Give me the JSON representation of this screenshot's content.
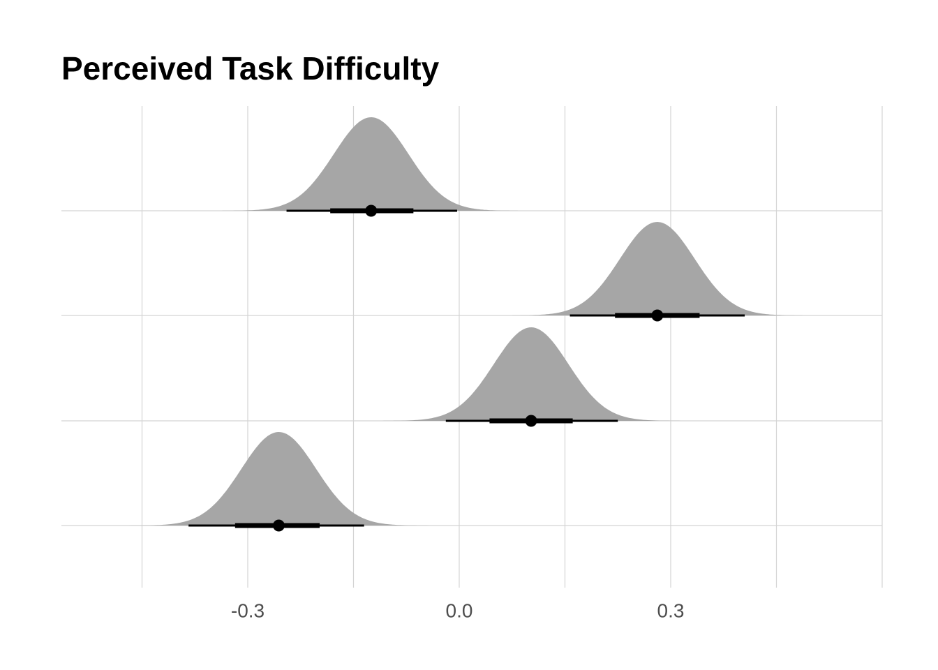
{
  "chart_data": {
    "type": "density",
    "title": "Perceived Task Difficulty",
    "xlabel": "",
    "ylabel": "",
    "xlim": [
      -0.45,
      0.6
    ],
    "xticks": [
      -0.3,
      0.0,
      0.3
    ],
    "xtick_labels": [
      "-0.3",
      "0.0",
      "0.3"
    ],
    "grid": true,
    "legend": "none",
    "fill_color": "#a6a6a6",
    "interval_color": "#000000",
    "series": [
      {
        "median": -0.125,
        "sd": 0.053,
        "x_min": -0.337,
        "x_max": 0.083,
        "interval_66": [
          -0.183,
          -0.065
        ],
        "interval_95": [
          -0.245,
          -0.003
        ]
      },
      {
        "median": 0.281,
        "sd": 0.053,
        "x_min": 0.075,
        "x_max": 0.487,
        "interval_66": [
          0.221,
          0.341
        ],
        "interval_95": [
          0.157,
          0.405
        ]
      },
      {
        "median": 0.102,
        "sd": 0.053,
        "x_min": -0.13,
        "x_max": 0.341,
        "interval_66": [
          0.043,
          0.161
        ],
        "interval_95": [
          -0.019,
          0.225
        ]
      },
      {
        "median": -0.256,
        "sd": 0.053,
        "x_min": -0.474,
        "x_max": -0.043,
        "interval_66": [
          -0.318,
          -0.198
        ],
        "interval_95": [
          -0.384,
          -0.135
        ]
      }
    ]
  }
}
